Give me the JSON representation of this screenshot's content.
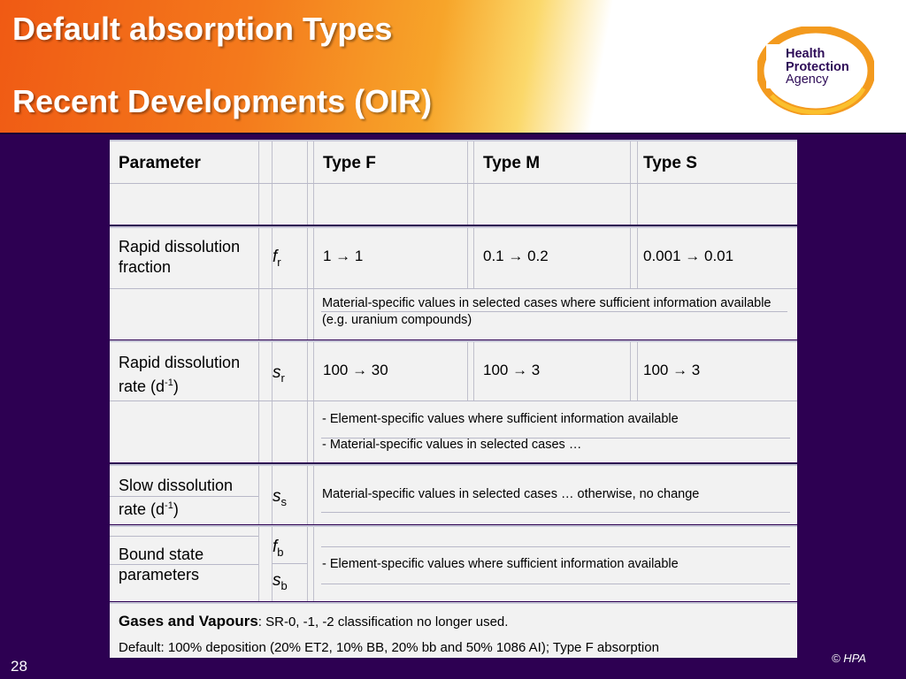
{
  "slide": {
    "title_line1": "Default absorption Types",
    "title_line2": "Recent Developments (OIR)",
    "page_number": "28",
    "copyright": "© HPA"
  },
  "logo": {
    "line1": "Health",
    "line2": "Protection",
    "line3": "Agency",
    "colors": {
      "ring_outer": "#f39a1e",
      "ring_inner": "#fbc02d",
      "text": "#2d0b57"
    }
  },
  "table": {
    "headers": {
      "parameter": "Parameter",
      "type_f": "Type F",
      "type_m": "Type M",
      "type_s": "Type S"
    },
    "rows": {
      "fr": {
        "label": "Rapid dissolution fraction",
        "symbol": "f",
        "sub": "r",
        "f": "1 → 1",
        "m": "0.1 → 0.2",
        "s": "0.001 → 0.01",
        "note": "Material-specific values in selected cases where sufficient information available (e.g. uranium compounds)"
      },
      "sr": {
        "label": "Rapid dissolution rate (d",
        "exp": "-1",
        "close": ")",
        "symbol": "s",
        "sub": "r",
        "f": "100 → 30",
        "m": "100 → 3",
        "s": "100 → 3",
        "note1": "- Element-specific values where sufficient information available",
        "note2": "- Material-specific values in selected cases …"
      },
      "ss": {
        "label": "Slow dissolution rate (d",
        "exp": "-1",
        "close": ")",
        "symbol": "s",
        "sub": "s",
        "note": "Material-specific values in selected cases … otherwise, no change"
      },
      "bound": {
        "label": "Bound state parameters",
        "symbol1": "f",
        "sub1": "b",
        "symbol2": "s",
        "sub2": "b",
        "note": "- Element-specific values where sufficient information available"
      },
      "gases": {
        "heading": "Gases and Vapours",
        "text1": ": SR-0, -1, -2 classification no longer used.",
        "text2": "Default: 100% deposition (20% ET2, 10% BB, 20% bb and 50% 1086 AI); Type F absorption"
      }
    }
  }
}
